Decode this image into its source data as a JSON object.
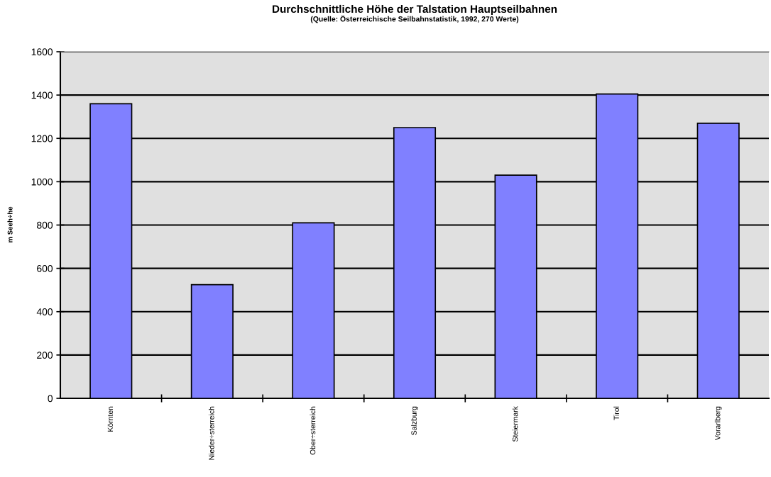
{
  "chart_data": {
    "type": "bar",
    "title": "Durchschnittliche Höhe der Talstation Hauptseilbahnen",
    "subtitle": "(Quelle: Österreichische Seilbahnstatistik, 1992, 270 Werte)",
    "ylabel": "m Seeh÷he",
    "categories": [
      "Körnten",
      "Nieder÷sterreich",
      "Ober÷sterreich",
      "Salzburg",
      "Steiermark",
      "Tirol",
      "Vorarlberg"
    ],
    "values": [
      1360,
      525,
      810,
      1250,
      1030,
      1405,
      1270
    ],
    "color": "#8080ff",
    "ylim": [
      0,
      1600
    ],
    "yticks": [
      0,
      200,
      400,
      600,
      800,
      1000,
      1200,
      1400,
      1600
    ],
    "grid": "y"
  }
}
